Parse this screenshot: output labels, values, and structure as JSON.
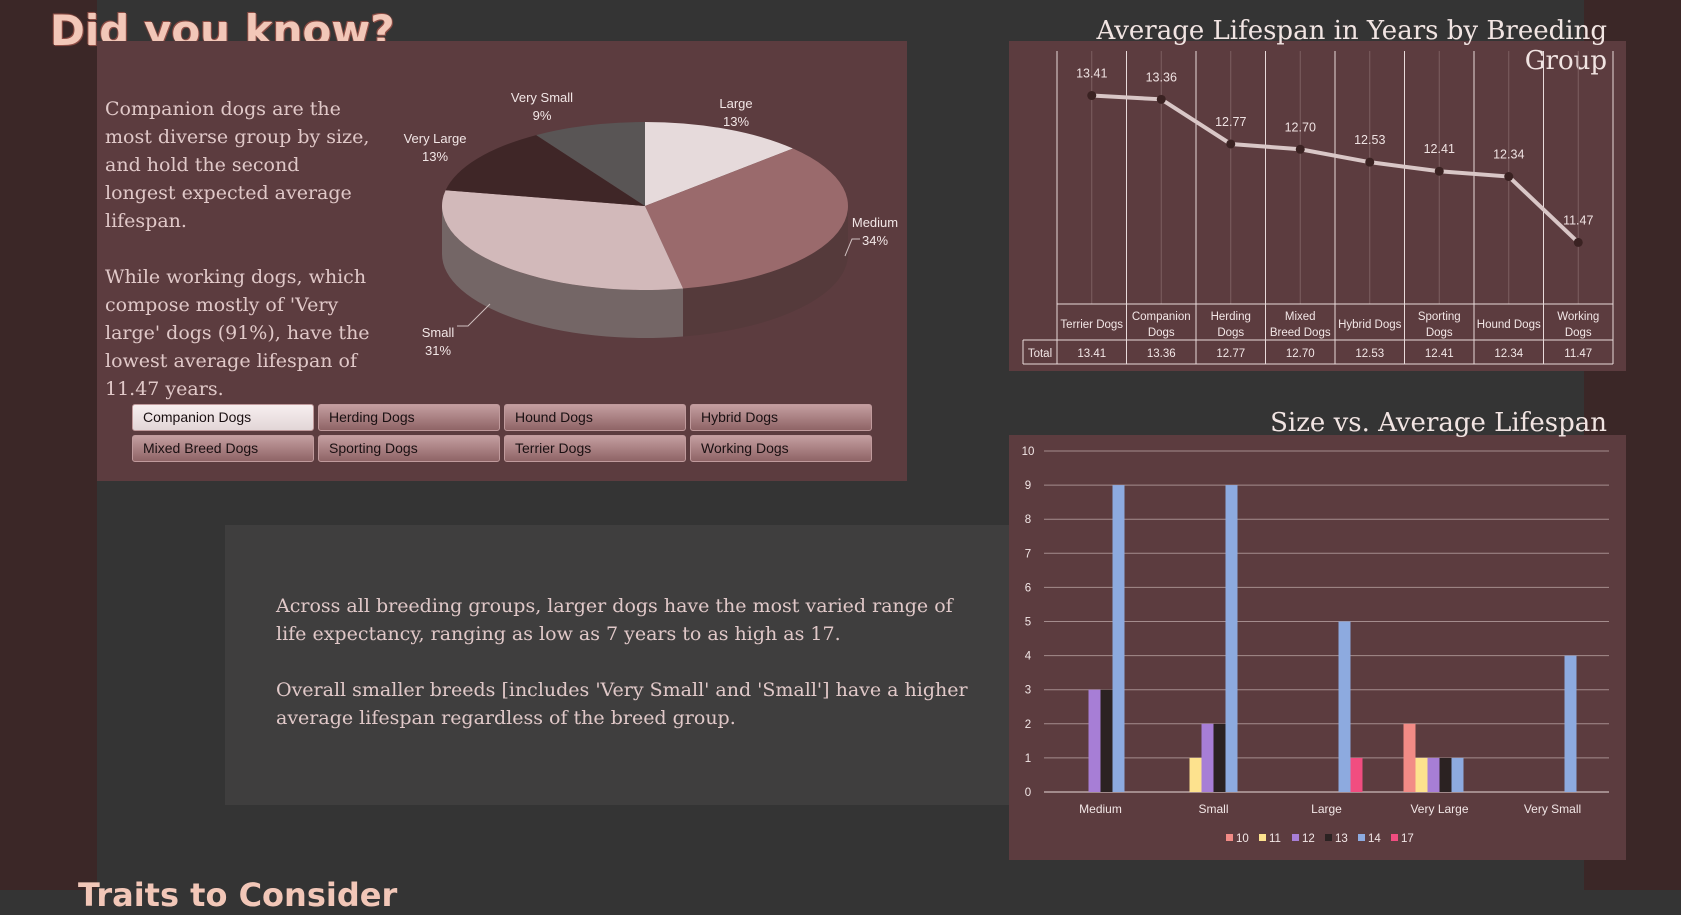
{
  "header": {
    "title": "Did you know?"
  },
  "intro": {
    "para1": "Companion dogs are the most diverse group by size, and hold the second longest expected average lifespan.",
    "para2": "While working dogs, which compose mostly of 'Very large'  dogs (91%), have the lowest average lifespan of 11.47 years."
  },
  "insight": {
    "para1": "Across all breeding groups, larger dogs have the most varied range of life expectancy, ranging as low as 7 years to as high as 17.",
    "para2": "Overall smaller breeds [includes 'Very Small' and 'Small'] have a higher average lifespan regardless of the breed group."
  },
  "slicer": {
    "items": [
      {
        "label": "Companion Dogs",
        "selected": true
      },
      {
        "label": "Herding Dogs",
        "selected": false
      },
      {
        "label": "Hound Dogs",
        "selected": false
      },
      {
        "label": "Hybrid Dogs",
        "selected": false
      },
      {
        "label": "Mixed Breed Dogs",
        "selected": false
      },
      {
        "label": "Sporting Dogs",
        "selected": false
      },
      {
        "label": "Terrier Dogs",
        "selected": false
      },
      {
        "label": "Working Dogs",
        "selected": false
      }
    ]
  },
  "footer": {
    "partial_title": "Traits to Consider"
  },
  "chart_data": [
    {
      "type": "pie",
      "title": "",
      "slices": [
        {
          "name": "Large",
          "value": 13,
          "label": "13%",
          "color": "#e6dadb"
        },
        {
          "name": "Medium",
          "value": 34,
          "label": "34%",
          "color": "#9a6a6c"
        },
        {
          "name": "Small",
          "value": 31,
          "label": "31%",
          "color": "#d2b9ba"
        },
        {
          "name": "Very Large",
          "value": 13,
          "label": "13%",
          "color": "#3f2627"
        },
        {
          "name": "Very Small",
          "value": 9,
          "label": "9%",
          "color": "#595555"
        }
      ]
    },
    {
      "type": "line",
      "title": "Average Lifespan in Years by Breeding Group",
      "categories": [
        "Terrier Dogs",
        "Companion Dogs",
        "Herding Dogs",
        "Mixed Breed Dogs",
        "Hybrid Dogs",
        "Sporting Dogs",
        "Hound Dogs",
        "Working Dogs"
      ],
      "values": [
        13.41,
        13.36,
        12.77,
        12.7,
        12.53,
        12.41,
        12.34,
        11.47
      ],
      "value_labels": [
        "13.41",
        "13.36",
        "12.77",
        "12.70",
        "12.53",
        "12.41",
        "12.34",
        "11.47"
      ],
      "table_row_label": "Total",
      "grid": true
    },
    {
      "type": "bar",
      "title": "Size vs. Average Lifespan",
      "categories": [
        "Medium",
        "Small",
        "Large",
        "Very Large",
        "Very Small"
      ],
      "ylim": [
        0,
        10
      ],
      "yticks": [
        "0",
        "1",
        "2",
        "3",
        "4",
        "5",
        "6",
        "7",
        "8",
        "9",
        "10"
      ],
      "legend_position": "bottom",
      "series": [
        {
          "name": "10",
          "color": "#f28b86",
          "values": [
            0,
            0,
            0,
            2,
            0
          ]
        },
        {
          "name": "11",
          "color": "#fde28e",
          "values": [
            0,
            1,
            0,
            1,
            0
          ]
        },
        {
          "name": "12",
          "color": "#a77ed6",
          "values": [
            3,
            2,
            0,
            1,
            0
          ]
        },
        {
          "name": "13",
          "color": "#2b2222",
          "values": [
            3,
            2,
            0,
            1,
            0
          ]
        },
        {
          "name": "14",
          "color": "#8daadf",
          "values": [
            9,
            9,
            5,
            1,
            4
          ]
        },
        {
          "name": "17",
          "color": "#f14d80",
          "values": [
            0,
            0,
            1,
            0,
            0
          ]
        }
      ],
      "grid": true
    }
  ]
}
